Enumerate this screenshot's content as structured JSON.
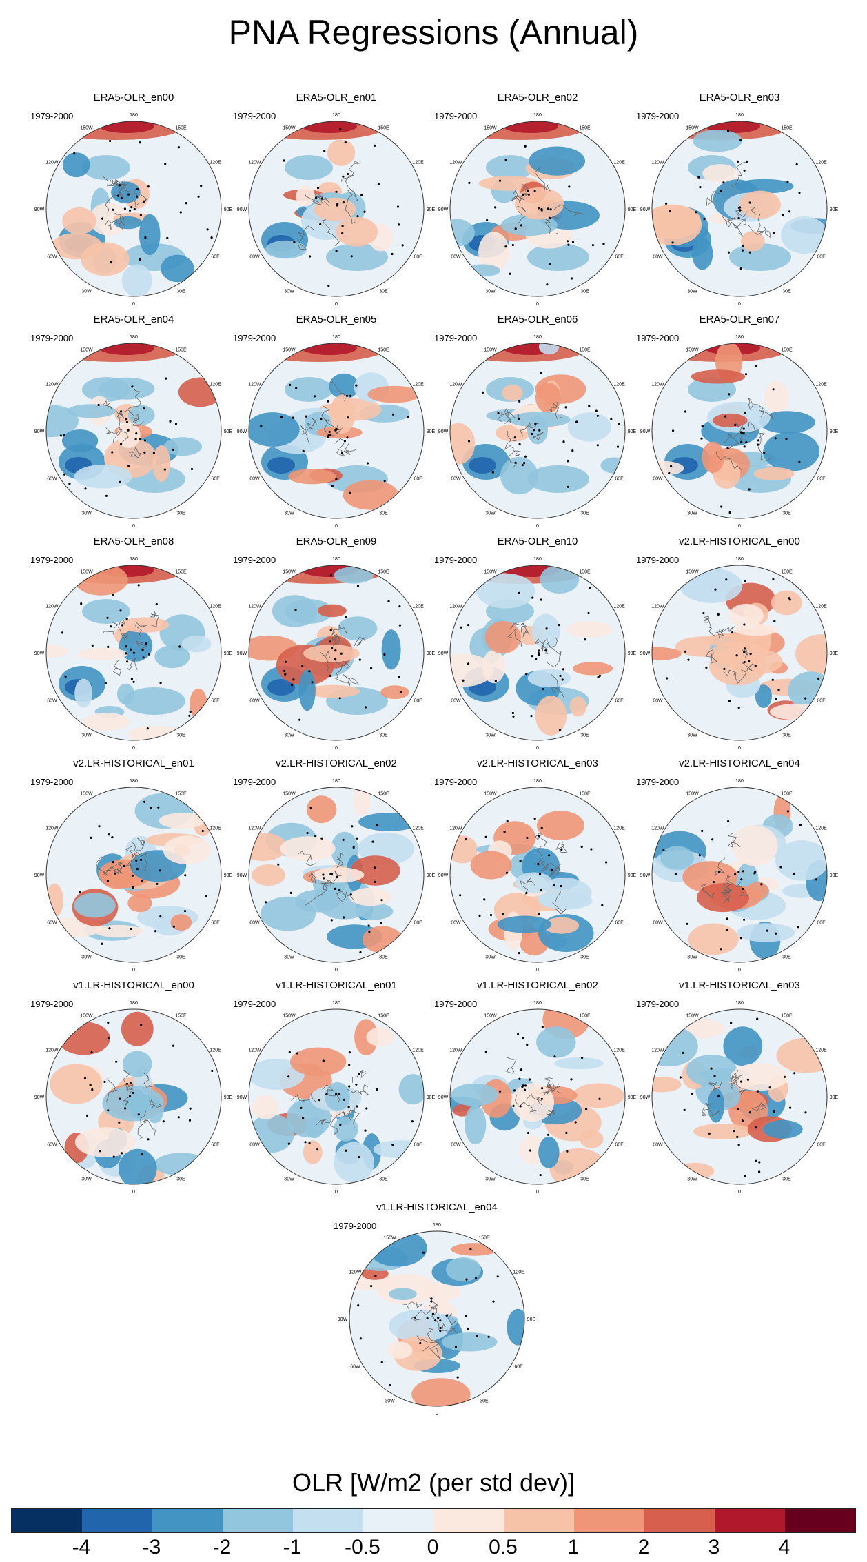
{
  "title": "PNA Regressions (Annual)",
  "chart_data": {
    "type": "polar contour map panels",
    "variable": "OLR",
    "colorbar_label": "OLR [W/m2 (per std dev)]",
    "colorbar_ticks": [
      "-4",
      "-3",
      "-2",
      "-1",
      "-0.5",
      "0",
      "0.5",
      "1",
      "2",
      "3",
      "4"
    ],
    "colorbar_colors": [
      "#053061",
      "#2166ac",
      "#4393c3",
      "#92c5de",
      "#c4dff0",
      "#e8f1f7",
      "#fbe9e0",
      "#f7c3a8",
      "#ee9677",
      "#d6604d",
      "#b2182b",
      "#67001f"
    ],
    "lon_labels": [
      "180",
      "150E",
      "120E",
      "90E",
      "60E",
      "30E",
      "0",
      "30W",
      "60W",
      "90W",
      "120W",
      "150W"
    ],
    "panels": [
      {
        "name": "ERA5-OLR_en00",
        "period": "1979-2000"
      },
      {
        "name": "ERA5-OLR_en01",
        "period": "1979-2000"
      },
      {
        "name": "ERA5-OLR_en02",
        "period": "1979-2000"
      },
      {
        "name": "ERA5-OLR_en03",
        "period": "1979-2000"
      },
      {
        "name": "ERA5-OLR_en04",
        "period": "1979-2000"
      },
      {
        "name": "ERA5-OLR_en05",
        "period": "1979-2000"
      },
      {
        "name": "ERA5-OLR_en06",
        "period": "1979-2000"
      },
      {
        "name": "ERA5-OLR_en07",
        "period": "1979-2000"
      },
      {
        "name": "ERA5-OLR_en08",
        "period": "1979-2000"
      },
      {
        "name": "ERA5-OLR_en09",
        "period": "1979-2000"
      },
      {
        "name": "ERA5-OLR_en10",
        "period": "1979-2000"
      },
      {
        "name": "v2.LR-HISTORICAL_en00",
        "period": "1979-2000"
      },
      {
        "name": "v2.LR-HISTORICAL_en01",
        "period": "1979-2000"
      },
      {
        "name": "v2.LR-HISTORICAL_en02",
        "period": "1979-2000"
      },
      {
        "name": "v2.LR-HISTORICAL_en03",
        "period": "1979-2000"
      },
      {
        "name": "v2.LR-HISTORICAL_en04",
        "period": "1979-2000"
      },
      {
        "name": "v1.LR-HISTORICAL_en00",
        "period": "1979-2000"
      },
      {
        "name": "v1.LR-HISTORICAL_en01",
        "period": "1979-2000"
      },
      {
        "name": "v1.LR-HISTORICAL_en02",
        "period": "1979-2000"
      },
      {
        "name": "v1.LR-HISTORICAL_en03",
        "period": "1979-2000"
      },
      {
        "name": "v1.LR-HISTORICAL_en04",
        "period": "1979-2000"
      }
    ]
  }
}
